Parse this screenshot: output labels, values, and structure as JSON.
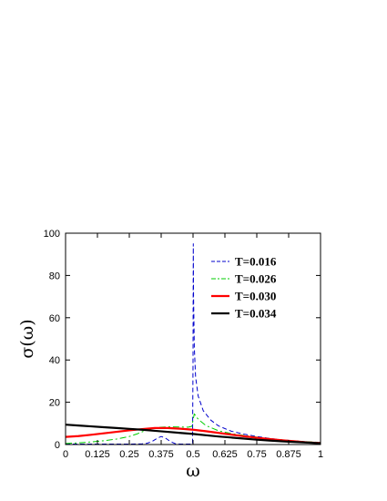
{
  "chart_data": {
    "type": "line",
    "title": "",
    "xlabel": "ω",
    "ylabel": "σ(ω)",
    "xlim": [
      0,
      1
    ],
    "ylim": [
      0,
      100
    ],
    "xticks": [
      "0",
      "0.125",
      "0.25",
      "0.375",
      "0.5",
      "0.625",
      "0.75",
      "0.875",
      "1"
    ],
    "yticks": [
      "0",
      "20",
      "40",
      "60",
      "80",
      "100"
    ],
    "grid": false,
    "legend_position": "top-right",
    "series": [
      {
        "name": "T=0.016",
        "color": "#0000cc",
        "style": "dashed",
        "points": [
          [
            0,
            0.2
          ],
          [
            0.1,
            0.2
          ],
          [
            0.2,
            0.2
          ],
          [
            0.25,
            0.2
          ],
          [
            0.3,
            0.3
          ],
          [
            0.32,
            0.6
          ],
          [
            0.34,
            1.5
          ],
          [
            0.36,
            3
          ],
          [
            0.375,
            3.8
          ],
          [
            0.39,
            3.2
          ],
          [
            0.41,
            1.5
          ],
          [
            0.43,
            0.4
          ],
          [
            0.45,
            0.2
          ],
          [
            0.49,
            0.2
          ],
          [
            0.498,
            0.3
          ],
          [
            0.5,
            40
          ],
          [
            0.501,
            95
          ],
          [
            0.502,
            70
          ],
          [
            0.505,
            46
          ],
          [
            0.51,
            32
          ],
          [
            0.52,
            23
          ],
          [
            0.54,
            16
          ],
          [
            0.57,
            11.5
          ],
          [
            0.6,
            8.8
          ],
          [
            0.65,
            6.3
          ],
          [
            0.7,
            4.9
          ],
          [
            0.75,
            3.8
          ],
          [
            0.8,
            2.9
          ],
          [
            0.85,
            2.2
          ],
          [
            0.9,
            1.7
          ],
          [
            0.95,
            1.2
          ],
          [
            1,
            0.8
          ]
        ]
      },
      {
        "name": "T=0.026",
        "color": "#00cc00",
        "style": "dash-dot",
        "points": [
          [
            0,
            0.5
          ],
          [
            0.05,
            0.8
          ],
          [
            0.1,
            1.2
          ],
          [
            0.15,
            1.8
          ],
          [
            0.2,
            2.6
          ],
          [
            0.25,
            3.8
          ],
          [
            0.28,
            5
          ],
          [
            0.31,
            6.5
          ],
          [
            0.34,
            7.6
          ],
          [
            0.375,
            8.2
          ],
          [
            0.41,
            8.4
          ],
          [
            0.45,
            8.3
          ],
          [
            0.48,
            8.2
          ],
          [
            0.495,
            8.6
          ],
          [
            0.505,
            14.5
          ],
          [
            0.52,
            12
          ],
          [
            0.55,
            9
          ],
          [
            0.6,
            6.5
          ],
          [
            0.65,
            5.2
          ],
          [
            0.7,
            4.3
          ],
          [
            0.75,
            3.5
          ],
          [
            0.8,
            2.8
          ],
          [
            0.85,
            2.2
          ],
          [
            0.9,
            1.7
          ],
          [
            0.95,
            1.3
          ],
          [
            1,
            1
          ]
        ]
      },
      {
        "name": "T=0.030",
        "color": "#ff0000",
        "style": "solid",
        "width": "thick",
        "points": [
          [
            0,
            3.6
          ],
          [
            0.05,
            4
          ],
          [
            0.1,
            4.6
          ],
          [
            0.15,
            5.3
          ],
          [
            0.2,
            6
          ],
          [
            0.25,
            6.7
          ],
          [
            0.3,
            7.3
          ],
          [
            0.35,
            7.8
          ],
          [
            0.4,
            7.8
          ],
          [
            0.45,
            7.5
          ],
          [
            0.5,
            7
          ],
          [
            0.55,
            6.3
          ],
          [
            0.6,
            5.5
          ],
          [
            0.65,
            4.7
          ],
          [
            0.7,
            3.9
          ],
          [
            0.75,
            3.2
          ],
          [
            0.8,
            2.6
          ],
          [
            0.85,
            2
          ],
          [
            0.9,
            1.5
          ],
          [
            0.95,
            1
          ],
          [
            1,
            0.7
          ]
        ]
      },
      {
        "name": "T=0.034",
        "color": "#000000",
        "style": "solid",
        "width": "thick",
        "points": [
          [
            0,
            9.4
          ],
          [
            0.05,
            9
          ],
          [
            0.1,
            8.6
          ],
          [
            0.15,
            8.2
          ],
          [
            0.2,
            7.8
          ],
          [
            0.25,
            7.4
          ],
          [
            0.3,
            7
          ],
          [
            0.35,
            6.5
          ],
          [
            0.4,
            6
          ],
          [
            0.45,
            5.5
          ],
          [
            0.5,
            5
          ],
          [
            0.55,
            4.4
          ],
          [
            0.6,
            3.8
          ],
          [
            0.65,
            3.3
          ],
          [
            0.7,
            2.8
          ],
          [
            0.75,
            2.3
          ],
          [
            0.8,
            1.9
          ],
          [
            0.85,
            1.5
          ],
          [
            0.9,
            1.2
          ],
          [
            0.95,
            0.9
          ],
          [
            1,
            0.6
          ]
        ]
      }
    ]
  }
}
